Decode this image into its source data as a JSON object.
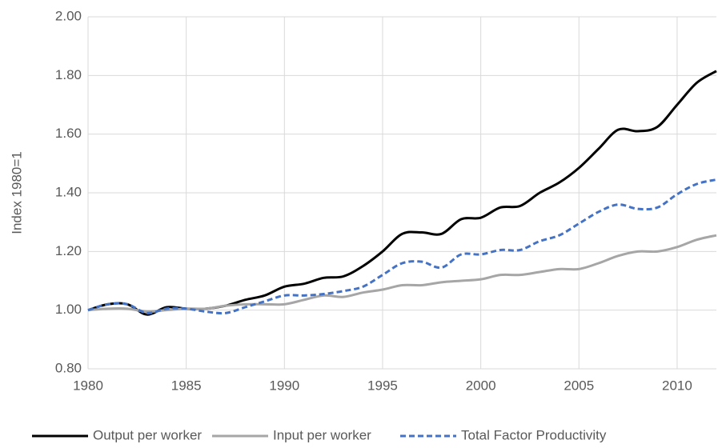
{
  "chart_data": {
    "type": "line",
    "y_label": "Index 1980=1",
    "x": [
      1980,
      1981,
      1982,
      1983,
      1984,
      1985,
      1986,
      1987,
      1988,
      1989,
      1990,
      1991,
      1992,
      1993,
      1994,
      1995,
      1996,
      1997,
      1998,
      1999,
      2000,
      2001,
      2002,
      2003,
      2004,
      2005,
      2006,
      2007,
      2008,
      2009,
      2010,
      2011,
      2012
    ],
    "series": [
      {
        "name": "Output per worker",
        "color": "#000000",
        "dash": false,
        "values": [
          1.0,
          1.02,
          1.02,
          0.985,
          1.01,
          1.005,
          1.005,
          1.015,
          1.035,
          1.05,
          1.08,
          1.09,
          1.11,
          1.115,
          1.15,
          1.2,
          1.26,
          1.265,
          1.26,
          1.31,
          1.315,
          1.35,
          1.355,
          1.4,
          1.435,
          1.485,
          1.55,
          1.615,
          1.61,
          1.625,
          1.7,
          1.775,
          1.815
        ]
      },
      {
        "name": "Input per worker",
        "color": "#a6a6a6",
        "dash": false,
        "values": [
          1.0,
          1.005,
          1.005,
          0.995,
          1.0,
          1.005,
          1.005,
          1.015,
          1.02,
          1.02,
          1.02,
          1.035,
          1.05,
          1.045,
          1.06,
          1.07,
          1.085,
          1.085,
          1.095,
          1.1,
          1.105,
          1.12,
          1.12,
          1.13,
          1.14,
          1.14,
          1.16,
          1.185,
          1.2,
          1.2,
          1.215,
          1.24,
          1.255
        ]
      },
      {
        "name": "Total Factor Productivity",
        "color": "#4472c4",
        "dash": true,
        "values": [
          1.0,
          1.02,
          1.02,
          0.99,
          1.005,
          1.005,
          0.995,
          0.99,
          1.01,
          1.03,
          1.05,
          1.05,
          1.055,
          1.065,
          1.08,
          1.12,
          1.16,
          1.165,
          1.145,
          1.19,
          1.19,
          1.205,
          1.205,
          1.235,
          1.255,
          1.295,
          1.335,
          1.36,
          1.345,
          1.35,
          1.395,
          1.43,
          1.445
        ]
      }
    ],
    "xlim": [
      1980,
      2012
    ],
    "xticks": [
      1980,
      1985,
      1990,
      1995,
      2000,
      2005,
      2010
    ],
    "ylim": [
      0.8,
      2.0
    ],
    "yticks": [
      {
        "value": 0.8,
        "label": "0.80"
      },
      {
        "value": 1.0,
        "label": "1.00"
      },
      {
        "value": 1.2,
        "label": "1.20"
      },
      {
        "value": 1.4,
        "label": "1.40"
      },
      {
        "value": 1.6,
        "label": "1.60"
      },
      {
        "value": 1.8,
        "label": "1.80"
      },
      {
        "value": 2.0,
        "label": "2.00"
      }
    ],
    "grid": true,
    "legend": "bottom"
  }
}
